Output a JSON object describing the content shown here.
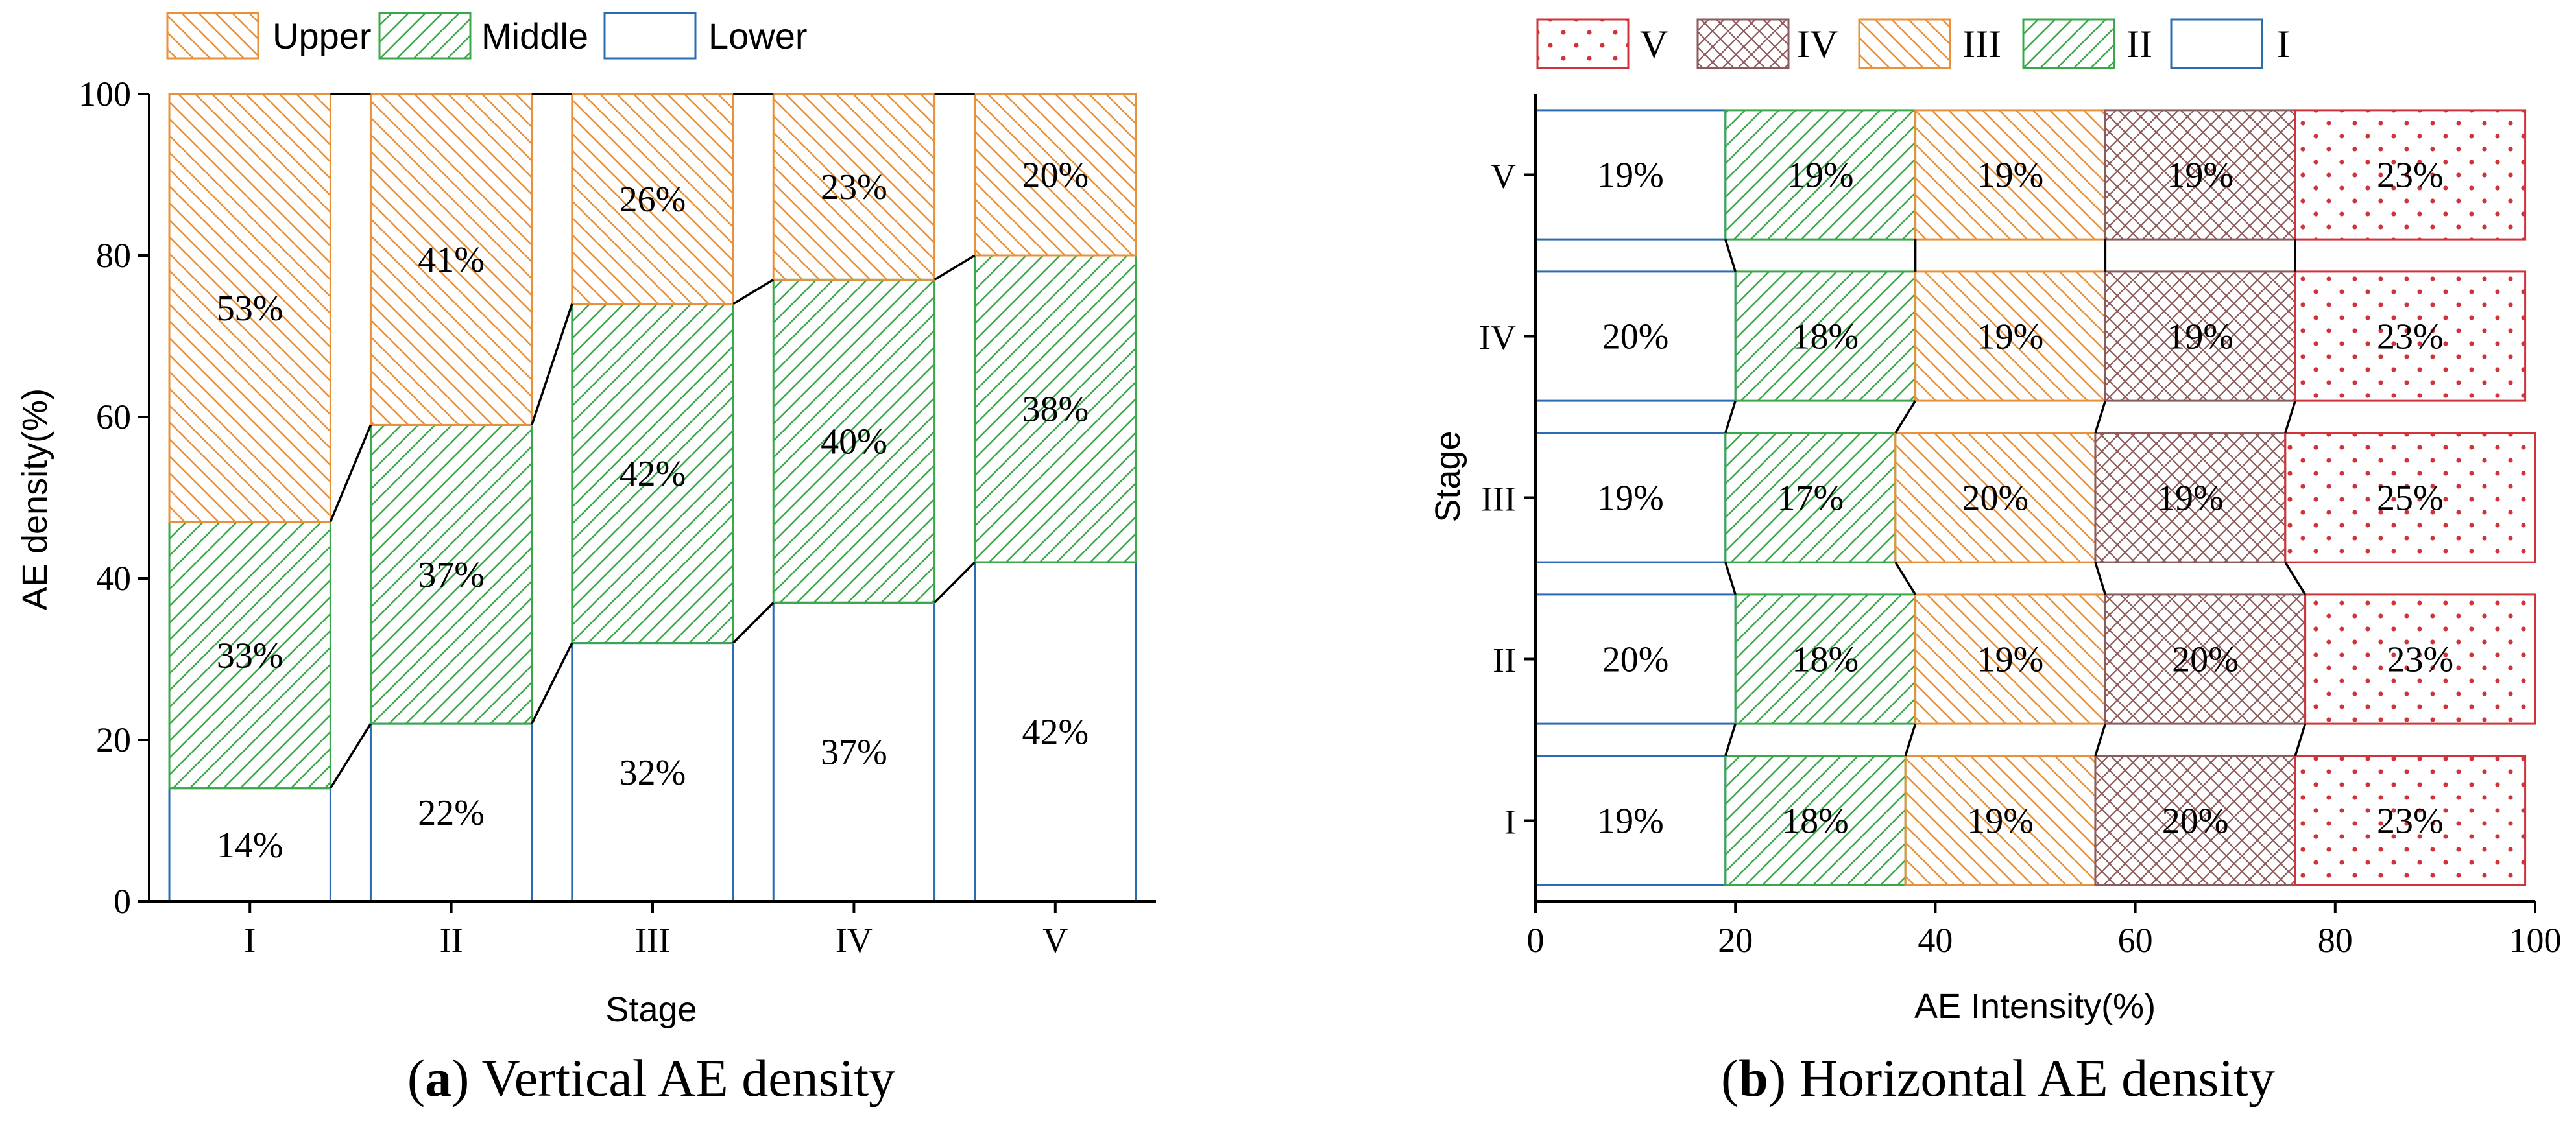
{
  "chart_data": [
    {
      "type": "bar",
      "stacked": true,
      "orientation": "vertical",
      "caption_letter": "a",
      "caption_text": " Vertical AE density",
      "xlabel": "Stage",
      "ylabel": "AE density(%)",
      "ylim": [
        0,
        100
      ],
      "yticks": [
        "0",
        "20",
        "40",
        "60",
        "80",
        "100"
      ],
      "categories": [
        "I",
        "II",
        "III",
        "IV",
        "V"
      ],
      "series": [
        {
          "name": "Lower",
          "color": "#2b6cb0",
          "pattern": "none",
          "values": [
            14,
            22,
            32,
            37,
            42
          ],
          "labels": [
            "14%",
            "22%",
            "32%",
            "37%",
            "42%"
          ]
        },
        {
          "name": "Middle",
          "color": "#3aa84a",
          "pattern": "fwd",
          "values": [
            33,
            37,
            42,
            40,
            38
          ],
          "labels": [
            "33%",
            "37%",
            "42%",
            "40%",
            "38%"
          ]
        },
        {
          "name": "Upper",
          "color": "#e8913a",
          "pattern": "back",
          "values": [
            53,
            41,
            26,
            23,
            20
          ],
          "labels": [
            "53%",
            "41%",
            "26%",
            "23%",
            "20%"
          ]
        }
      ],
      "legend": [
        "Upper",
        "Middle",
        "Lower"
      ]
    },
    {
      "type": "bar",
      "stacked": true,
      "orientation": "horizontal",
      "caption_letter": "b",
      "caption_text": " Horizontal AE density",
      "xlabel": "AE Intensity(%)",
      "ylabel": "Stage",
      "xlim": [
        0,
        100
      ],
      "xticks": [
        "0",
        "20",
        "40",
        "60",
        "80",
        "100"
      ],
      "categories": [
        "I",
        "II",
        "III",
        "IV",
        "V"
      ],
      "series": [
        {
          "name": "I",
          "color": "#2b6cb0",
          "pattern": "none",
          "values": [
            19,
            20,
            19,
            20,
            19
          ],
          "labels": [
            "19%",
            "20%",
            "19%",
            "20%",
            "19%"
          ]
        },
        {
          "name": "II",
          "color": "#3aa84a",
          "pattern": "fwd",
          "values": [
            18,
            18,
            17,
            18,
            19
          ],
          "labels": [
            "18%",
            "18%",
            "17%",
            "18%",
            "19%"
          ]
        },
        {
          "name": "III",
          "color": "#e8913a",
          "pattern": "back",
          "values": [
            19,
            19,
            20,
            19,
            19
          ],
          "labels": [
            "19%",
            "19%",
            "20%",
            "19%",
            "19%"
          ]
        },
        {
          "name": "IV",
          "color": "#8b5a5a",
          "pattern": "cross",
          "values": [
            20,
            20,
            19,
            19,
            19
          ],
          "labels": [
            "20%",
            "20%",
            "19%",
            "19%",
            "19%"
          ]
        },
        {
          "name": "V",
          "color": "#d0343a",
          "pattern": "dots",
          "values": [
            23,
            23,
            25,
            23,
            23
          ],
          "labels": [
            "23%",
            "23%",
            "25%",
            "23%",
            "23%"
          ]
        }
      ],
      "legend": [
        "V",
        "IV",
        "III",
        "II",
        "I"
      ]
    }
  ]
}
